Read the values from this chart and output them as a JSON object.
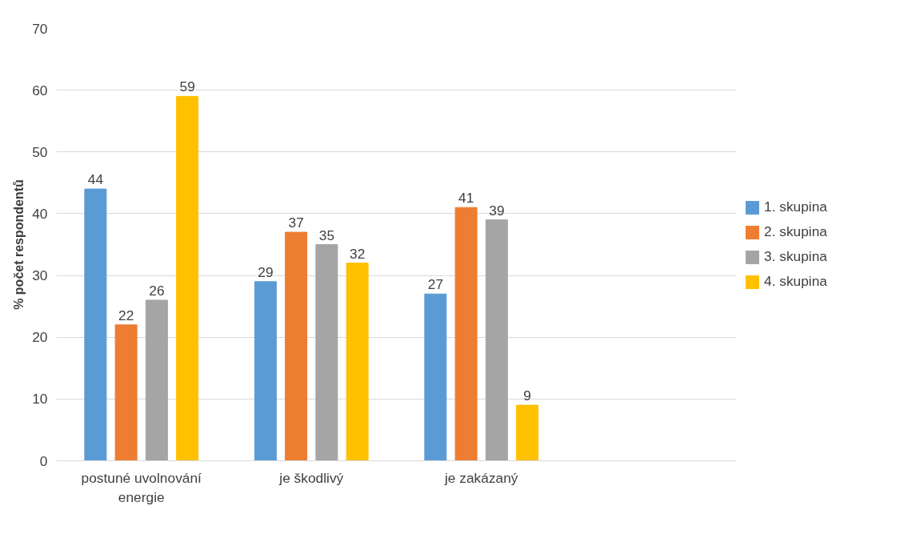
{
  "chart_data": {
    "type": "bar",
    "ylabel": "% počet respondentů",
    "categories": [
      "postuné uvolnování energie",
      "je škodlivý",
      "je zakázaný",
      null
    ],
    "series": [
      {
        "name": "1. skupina",
        "color": "#5b9bd5",
        "values": [
          44,
          29,
          27,
          null
        ]
      },
      {
        "name": "2. skupina",
        "color": "#ed7d31",
        "values": [
          22,
          37,
          41,
          null
        ]
      },
      {
        "name": "3. skupina",
        "color": "#a5a5a5",
        "values": [
          26,
          35,
          39,
          null
        ]
      },
      {
        "name": "4. skupina",
        "color": "#ffc000",
        "values": [
          59,
          32,
          9,
          null
        ]
      }
    ],
    "ylim": [
      0,
      70
    ],
    "yticks": [
      0,
      10,
      20,
      30,
      40,
      50,
      60,
      70
    ],
    "grid": "y",
    "legend": "right",
    "data_labels": true
  }
}
